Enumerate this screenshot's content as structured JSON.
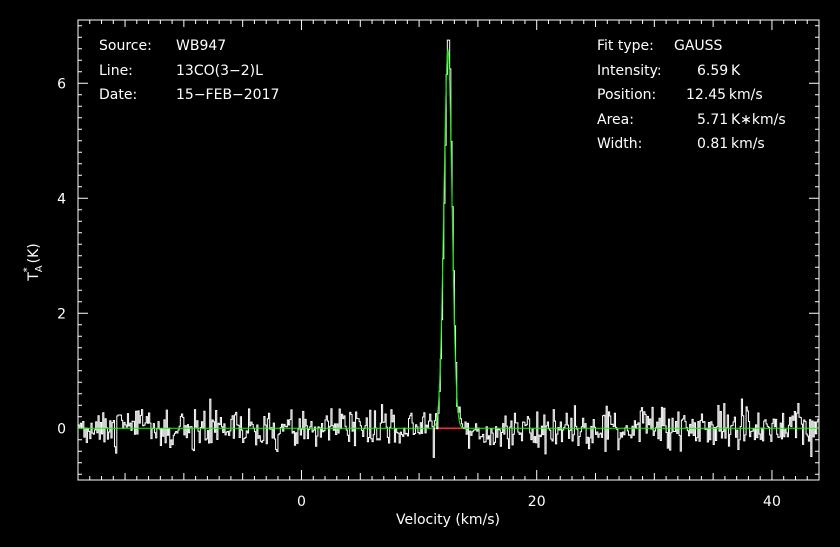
{
  "chart_data": {
    "type": "line",
    "xlabel": "Velocity (km/s)",
    "ylabel_main": "T",
    "ylabel_sup": "*",
    "ylabel_sub": "A",
    "ylabel_unit": "(K)",
    "xlim": [
      -19,
      44
    ],
    "ylim": [
      -0.9,
      7.1
    ],
    "xticks": [
      0,
      20,
      40
    ],
    "yticks": [
      0,
      2,
      4,
      6
    ],
    "colors": {
      "background": "#000000",
      "axes": "#ffffff",
      "spectrum": "#ffffff",
      "fit": "#00ff00",
      "window": "#ff0000"
    },
    "info_left": [
      {
        "label": "Source:",
        "value": "WB947"
      },
      {
        "label": "Line:",
        "value": "13CO(3−2)L"
      },
      {
        "label": "Date:",
        "value": "15−FEB−2017"
      }
    ],
    "info_right": [
      {
        "label": "Fit type:",
        "value": "GAUSS"
      },
      {
        "label": "Intensity:",
        "value": "6.59 K"
      },
      {
        "label": "Position:",
        "value": "12.45 km/s"
      },
      {
        "label": "Area:",
        "value": "5.71 K∗km/s"
      },
      {
        "label": "Width:",
        "value": "0.81 km/s"
      }
    ],
    "fit": {
      "type": "GAUSS",
      "amplitude": 6.59,
      "center": 12.45,
      "fwhm": 0.81,
      "area": 5.71
    },
    "fit_window": [
      11.2,
      13.8
    ],
    "noise_rms": 0.17
  }
}
